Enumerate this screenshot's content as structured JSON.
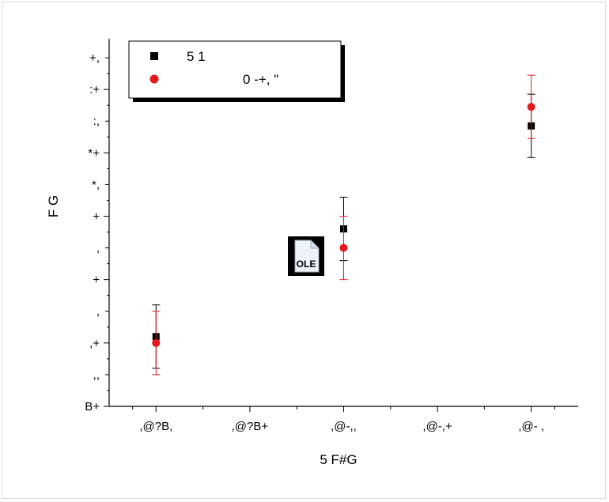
{
  "chart_data": {
    "type": "scatter",
    "xlabel": "5 F#G",
    "ylabel": "F G",
    "x_tick_labels": [
      ",@?B,",
      ",@?B+",
      ",@-,,",
      ",@-,+",
      ",@- ,"
    ],
    "y_tick_labels": [
      "B+",
      ",,",
      ",+",
      ",",
      "+",
      ",",
      "+",
      "*,",
      "*+",
      ":,",
      ":+",
      "+,"
    ],
    "xlim": [
      0.5,
      5.5
    ],
    "ylim": [
      0,
      11.6
    ],
    "grid": false,
    "legend_position": "top-left",
    "series": [
      {
        "name": "5 1",
        "marker": "square",
        "color": "#000000",
        "points": [
          {
            "x": 1,
            "y": 2.2,
            "err": 1.0
          },
          {
            "x": 3,
            "y": 5.6,
            "err": 1.0
          },
          {
            "x": 5,
            "y": 8.85,
            "err": 1.0
          }
        ]
      },
      {
        "name": "0 -+, \"",
        "marker": "circle",
        "color": "#e31a1c",
        "points": [
          {
            "x": 1,
            "y": 2.0,
            "err": 1.0
          },
          {
            "x": 3,
            "y": 5.0,
            "err": 1.0
          },
          {
            "x": 5,
            "y": 9.45,
            "err": 1.0
          }
        ]
      }
    ]
  },
  "ole_badge": "OLE"
}
